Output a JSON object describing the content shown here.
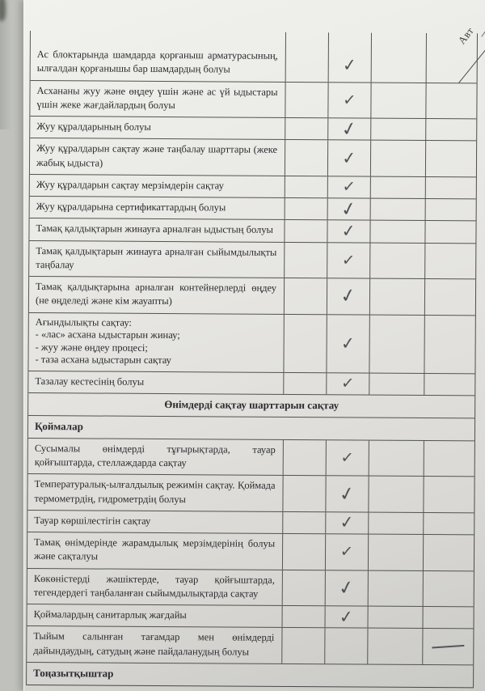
{
  "document": {
    "language": "kk",
    "corner_note": "Авт",
    "mark_glyphs": {
      "check": "✓",
      "dash": ""
    },
    "section_headers": {
      "storage": "Өнімдерді сақтау шарттарын сақтау",
      "warehouses": "Қоймалар",
      "freezers": "Тоңазытқыштар"
    },
    "rows": [
      {
        "type": "item",
        "text": "Ас блоктарында шамдарда қорғаныш арматурасының, ылғалдан қорғанышы бар шамдардың болуы",
        "mark": "check",
        "mark_col": 2
      },
      {
        "type": "item",
        "text": "Асхананы жуу және өңдеу үшін және ас үй ыдыстары үшін жеке жағдайлардың болуы",
        "mark": "check",
        "mark_col": 2
      },
      {
        "type": "item",
        "text": "Жуу құралдарының болуы",
        "mark": "check",
        "mark_col": 2
      },
      {
        "type": "item",
        "text": "Жуу құралдарын сақтау және таңбалау шарттары (жеке жабық ыдыста)",
        "mark": "check",
        "mark_col": 2
      },
      {
        "type": "item",
        "text": "Жуу құралдарын сақтау мерзімдерін сақтау",
        "mark": "check",
        "mark_col": 2
      },
      {
        "type": "item",
        "text": "Жуу құралдарына сертификаттардың болуы",
        "mark": "check",
        "mark_col": 2
      },
      {
        "type": "item",
        "text": "Тамақ қалдықтарын жинауға арналған ыдыстың болуы",
        "mark": "check",
        "mark_col": 2
      },
      {
        "type": "item",
        "text": "Тамақ қалдықтарын жинауға арналған сыйымдылықты таңбалау",
        "mark": "check",
        "mark_col": 2
      },
      {
        "type": "item",
        "text": "Тамақ қалдықтарына арналған контейнерлерді өңдеу (не өңделеді және кім жауапты)",
        "mark": "check",
        "mark_col": 2
      },
      {
        "type": "item",
        "lines": [
          "Ағындылықты сақтау:",
          "- «лас» асхана ыдыстарын жинау;",
          "- жуу және өңдеу процесі;",
          "- таза асхана ыдыстарын сақтау"
        ],
        "mark": "check",
        "mark_col": 2
      },
      {
        "type": "item",
        "text": "Тазалау кестесінің болуы",
        "mark": "check",
        "mark_col": 2
      },
      {
        "type": "section",
        "text": "Өнімдерді сақтау шарттарын сақтау"
      },
      {
        "type": "subsection",
        "text": "Қоймалар"
      },
      {
        "type": "item",
        "text": "Сусымалы өнімдерді тұғырықтарда, тауар қойғыштарда, стеллаждарда сақтау",
        "mark": "check",
        "mark_col": 2
      },
      {
        "type": "item",
        "text": "Температуралық-ылғалдылық режимін сақтау. Қоймада термометрдің, гидрометрдің болуы",
        "mark": "check",
        "mark_col": 2
      },
      {
        "type": "item",
        "text": "Тауар көршілестігін сақтау",
        "mark": "check",
        "mark_col": 2
      },
      {
        "type": "item",
        "text": "Тамақ өнімдерінде жарамдылық мерзімдерінің болуы және сақталуы",
        "mark": "check",
        "mark_col": 2
      },
      {
        "type": "item",
        "text": "Көкөністерді жәшіктерде, тауар қойғыштарда, тегендердегі таңбаланған сыйымдылықтарда сақтау",
        "mark": "check",
        "mark_col": 2
      },
      {
        "type": "item",
        "text": "Қоймалардың санитарлық жағдайы",
        "mark": "check",
        "mark_col": 2
      },
      {
        "type": "item",
        "text": "Тыйым салынған тағамдар мен өнімдерді дайындаудың, сатудың және пайдаланудың болуы",
        "mark": "dash",
        "mark_col": 4
      },
      {
        "type": "subsection",
        "text": "Тоңазытқыштар"
      }
    ]
  }
}
